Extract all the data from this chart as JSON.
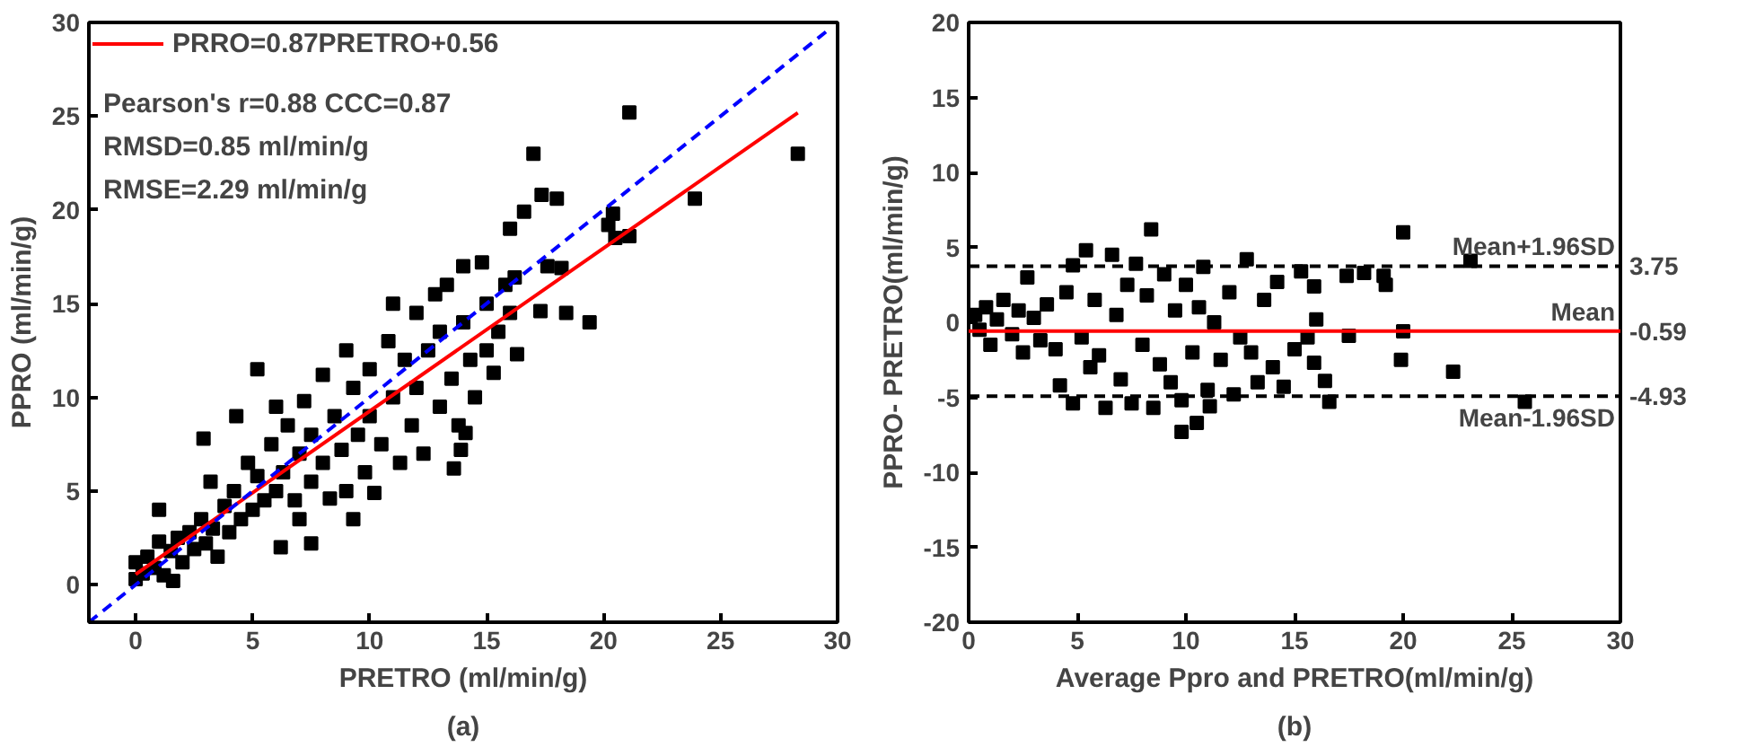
{
  "chart_data": [
    {
      "type": "scatter",
      "title": "(a)",
      "xlabel": "PRETRO (ml/min/g)",
      "ylabel": "PPRO (ml/min/g)",
      "xlim": [
        -2,
        30
      ],
      "ylim": [
        -2,
        30
      ],
      "xticks": [
        0,
        5,
        10,
        15,
        20,
        25,
        30
      ],
      "yticks": [
        0,
        5,
        10,
        15,
        20,
        25,
        30
      ],
      "grid": false,
      "legend": "top left",
      "annotations": [
        "Pearson's r=0.88   CCC=0.87",
        "RMSD=0.85 ml/min/g",
        "RMSE=2.29 ml/min/g"
      ],
      "series": [
        {
          "marker": "square",
          "color": "#000000",
          "x": [
            21.1,
            17.0,
            28.3,
            23.9,
            17.35,
            18.0,
            16.6,
            16.0,
            20.4,
            20.2,
            20.5,
            21.1,
            17.3,
            18.4,
            19.4,
            18.2,
            17.6,
            16.2,
            16.3,
            15.3,
            13.6,
            13.9,
            14.1,
            6.2,
            7.5,
            9.3,
            5.2,
            2.9,
            1.0,
            1.6,
            0,
            0,
            0.3,
            0.5,
            0.8,
            1,
            1.2,
            1.5,
            1.8,
            2,
            2.3,
            2.5,
            2.8,
            3,
            3.3,
            3.5,
            3.2,
            3.8,
            4,
            4.2,
            4.5,
            4.8,
            5,
            4.3,
            5.2,
            5.5,
            5.8,
            6,
            6,
            6.3,
            6.5,
            6.8,
            7,
            7.2,
            7,
            7.5,
            7.5,
            8,
            8,
            8.3,
            8.5,
            8.8,
            9,
            9,
            9.3,
            9.5,
            9.8,
            10,
            10,
            10.2,
            10.5,
            10.8,
            11,
            11,
            11.3,
            11.5,
            11.8,
            12,
            12,
            12.3,
            12.5,
            12.8,
            13,
            13,
            13.3,
            13.5,
            13.8,
            14,
            14,
            14.3,
            14.5,
            14.8,
            15,
            15,
            15.5,
            15.8,
            16
          ],
          "values": [
            25.2,
            23.0,
            23.0,
            20.6,
            20.8,
            20.6,
            19.9,
            19.0,
            19.8,
            19.2,
            18.5,
            18.6,
            14.6,
            14.5,
            14.0,
            16.9,
            17.0,
            16.4,
            12.3,
            11.3,
            6.2,
            7.2,
            8.1,
            2.0,
            2.2,
            3.5,
            11.5,
            7.8,
            4.0,
            0.2,
            0.3,
            1.2,
            0.6,
            1.5,
            0.9,
            2.3,
            0.5,
            1.8,
            2.5,
            1.2,
            2.8,
            1.9,
            3.5,
            2.2,
            3.0,
            1.5,
            5.5,
            4.2,
            2.8,
            5.0,
            3.5,
            6.5,
            4.0,
            9.0,
            5.8,
            4.5,
            7.5,
            9.5,
            5.0,
            6.0,
            8.5,
            4.5,
            7.0,
            9.8,
            3.5,
            5.5,
            8.0,
            6.5,
            11.2,
            4.6,
            9.0,
            7.2,
            12.5,
            5.0,
            10.5,
            8.0,
            6.0,
            11.5,
            9.0,
            4.9,
            7.5,
            13.0,
            15.0,
            10.0,
            6.5,
            12.0,
            8.5,
            14.5,
            10.5,
            7.0,
            12.5,
            15.5,
            9.5,
            13.5,
            16.0,
            11.0,
            8.5,
            14.0,
            17.0,
            12.0,
            10.0,
            17.2,
            15.0,
            12.5,
            13.5,
            16.0,
            14.5
          ]
        },
        {
          "type": "line",
          "name": "PRRO=0.87PRETRO+0.56",
          "color": "#ff0000",
          "line_style": "solid",
          "x": [
            0,
            28.3
          ],
          "values": [
            0.56,
            25.18
          ]
        },
        {
          "type": "line",
          "color": "#0000ff",
          "line_style": "dashed",
          "x": [
            -2,
            29.5
          ],
          "values": [
            -2,
            29.5
          ]
        }
      ]
    },
    {
      "type": "scatter",
      "title": "(b)",
      "xlabel": "Average Ppro and PRETRO(ml/min/g)",
      "ylabel": "PPRO- PRETRO(ml/min/g)",
      "xlim": [
        0,
        30
      ],
      "ylim": [
        -20,
        20
      ],
      "xticks": [
        0,
        5,
        10,
        15,
        20,
        25,
        30
      ],
      "yticks": [
        -20,
        -15,
        -10,
        -5,
        0,
        5,
        10,
        15,
        20
      ],
      "y2lim": [
        -20,
        20
      ],
      "y2ticks": [
        3.75,
        -0.59,
        -4.93
      ],
      "grid": false,
      "legend": false,
      "ref_lines": [
        {
          "axis": "y",
          "value": 3.75,
          "label": "Mean+1.96SD",
          "color": "#000000",
          "line_style": "dashed"
        },
        {
          "axis": "y",
          "value": -0.59,
          "label": "Mean",
          "color": "#ff0000",
          "line_style": "solid"
        },
        {
          "axis": "y",
          "value": -4.93,
          "label": "Mean-1.96SD",
          "color": "#000000",
          "line_style": "dashed"
        }
      ],
      "series": [
        {
          "marker": "square",
          "color": "#000000",
          "x": [
            8.4,
            20.0,
            23.1,
            22.3,
            25.6,
            9.8,
            10.5,
            11.1,
            16.6,
            16.4,
            17.4,
            18.2,
            19.1,
            19.2,
            19.9,
            20.0,
            17.5,
            16.0,
            15.9,
            0.3,
            0.5,
            0.8,
            1,
            1.3,
            1.6,
            2,
            2.3,
            2.5,
            2.7,
            3,
            3.3,
            3.6,
            4,
            4.2,
            4.5,
            4.8,
            4.8,
            5.2,
            5.4,
            5.6,
            5.8,
            6,
            6.3,
            6.6,
            6.8,
            7,
            7.3,
            7.5,
            7.7,
            8,
            8.2,
            8.5,
            8.8,
            9,
            9.3,
            9.5,
            9.8,
            10,
            10.3,
            10.6,
            10.8,
            11,
            11.3,
            11.6,
            12,
            12.2,
            12.5,
            12.8,
            13,
            13.3,
            13.6,
            14,
            14.2,
            14.5,
            15,
            15.3,
            15.6,
            15.9
          ],
          "values": [
            6.2,
            6.0,
            4.1,
            -3.3,
            -5.3,
            -7.3,
            -6.7,
            -5.6,
            -5.3,
            -3.9,
            3.1,
            3.3,
            3.1,
            2.5,
            -2.5,
            -0.6,
            -0.9,
            0.2,
            -2.7,
            0.5,
            -0.5,
            1.0,
            -1.5,
            0.2,
            1.5,
            -0.8,
            0.8,
            -2.0,
            3.0,
            0.3,
            -1.2,
            1.2,
            -1.8,
            -4.2,
            2.0,
            -5.4,
            3.8,
            -1.0,
            4.8,
            -3.0,
            1.5,
            -2.2,
            -5.7,
            4.5,
            0.5,
            -3.8,
            2.5,
            -5.4,
            3.9,
            -1.5,
            1.8,
            -5.7,
            -2.8,
            3.2,
            -4.0,
            0.8,
            -5.2,
            2.5,
            -2.0,
            1.0,
            3.7,
            -4.5,
            0.0,
            -2.5,
            2.0,
            -4.8,
            -1.0,
            4.2,
            -2.0,
            -4.0,
            1.5,
            -3.0,
            2.7,
            -4.3,
            -1.8,
            3.4,
            -1.0,
            2.4
          ]
        }
      ]
    }
  ]
}
